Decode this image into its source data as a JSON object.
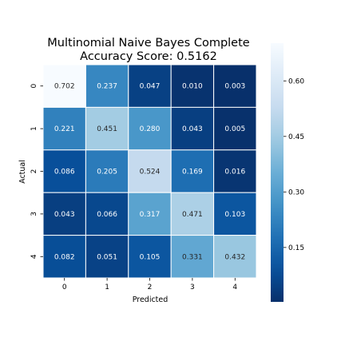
{
  "chart_data": {
    "type": "heatmap",
    "title": "Multinomial Naive Bayes Complete",
    "subtitle": "Accuracy Score: 0.5162",
    "xlabel": "Predicted",
    "ylabel": "Actual",
    "x_categories": [
      "0",
      "1",
      "2",
      "3",
      "4"
    ],
    "y_categories": [
      "0",
      "1",
      "2",
      "3",
      "4"
    ],
    "values": [
      [
        0.702,
        0.237,
        0.047,
        0.01,
        0.003
      ],
      [
        0.221,
        0.451,
        0.28,
        0.043,
        0.005
      ],
      [
        0.086,
        0.205,
        0.524,
        0.169,
        0.016
      ],
      [
        0.043,
        0.066,
        0.317,
        0.471,
        0.103
      ],
      [
        0.082,
        0.051,
        0.105,
        0.331,
        0.432
      ]
    ],
    "cell_labels": [
      [
        "0.702",
        "0.237",
        "0.047",
        "0.010",
        "0.003"
      ],
      [
        "0.221",
        "0.451",
        "0.280",
        "0.043",
        "0.005"
      ],
      [
        "0.086",
        "0.205",
        "0.524",
        "0.169",
        "0.016"
      ],
      [
        "0.043",
        "0.066",
        "0.317",
        "0.471",
        "0.103"
      ],
      [
        "0.082",
        "0.051",
        "0.105",
        "0.331",
        "0.432"
      ]
    ],
    "colorbar": {
      "range": [
        0.003,
        0.702
      ],
      "ticks": [
        0.15,
        0.3,
        0.45,
        0.6
      ],
      "tick_labels": [
        "0.15",
        "0.30",
        "0.45",
        "0.60"
      ]
    },
    "colormap": "Blues_r",
    "grid": false
  }
}
